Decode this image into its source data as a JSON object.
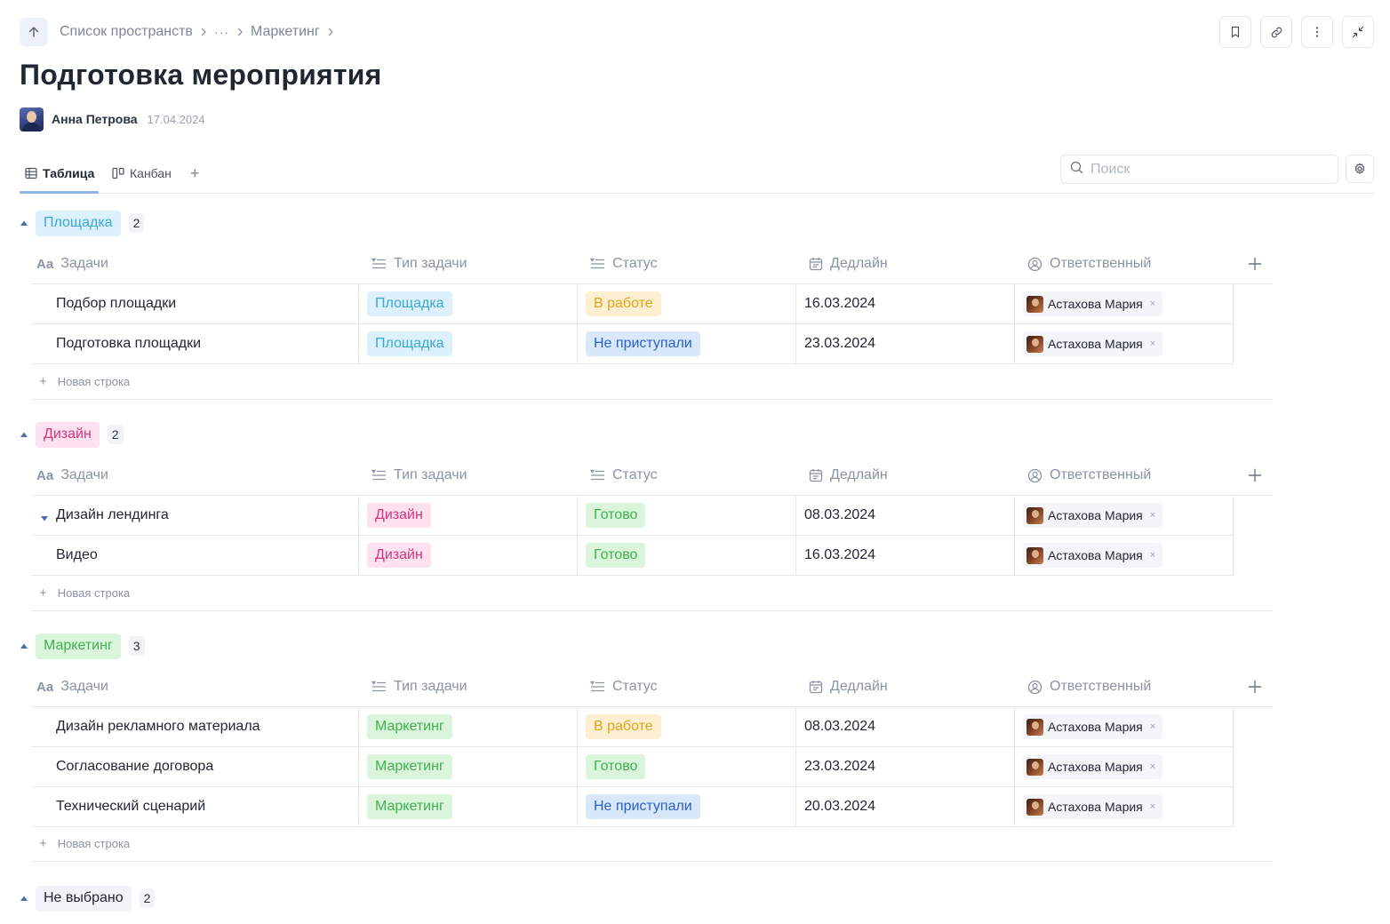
{
  "breadcrumb": {
    "items": [
      "Список пространств",
      "···",
      "Маркетинг"
    ]
  },
  "page_title": "Подготовка мероприятия",
  "author": {
    "name": "Анна Петрова",
    "date": "17.04.2024"
  },
  "views": {
    "table": "Таблица",
    "kanban": "Канбан",
    "add": "+"
  },
  "search": {
    "placeholder": "Поиск"
  },
  "columns": {
    "tasks": "Задачи",
    "type": "Тип задачи",
    "status": "Статус",
    "deadline": "Дедлайн",
    "assignee": "Ответственный"
  },
  "new_row_label": "Новая строка",
  "colors": {
    "venue_bg": "#dcf1fb",
    "venue_fg": "#3aa7d8",
    "design_bg": "#fde1ee",
    "design_fg": "#d6347e",
    "marketing_bg": "#daf5dc",
    "marketing_fg": "#3fb24e",
    "inprogress_bg": "#fdf0d2",
    "inprogress_fg": "#e3a21a",
    "done_bg": "#daf5dc",
    "done_fg": "#3fb24e",
    "notstarted_bg": "#d9e7fb",
    "notstarted_fg": "#2a61c4",
    "none_bg": "#f1f3f6",
    "none_fg": "#1f2533"
  },
  "groups": [
    {
      "name": "Площадка",
      "count": "2",
      "rows": [
        {
          "task": "Подбор площадки",
          "type": "Площадка",
          "status": "В работе",
          "deadline": "16.03.2024",
          "assignee": "Астахова Мария"
        },
        {
          "task": "Подготовка площадки",
          "type": "Площадка",
          "status": "Не приступали",
          "deadline": "23.03.2024",
          "assignee": "Астахова Мария"
        }
      ]
    },
    {
      "name": "Дизайн",
      "count": "2",
      "rows": [
        {
          "task": "Дизайн лендинга",
          "type": "Дизайн",
          "status": "Готово",
          "deadline": "08.03.2024",
          "assignee": "Астахова Мария"
        },
        {
          "task": "Видео",
          "type": "Дизайн",
          "status": "Готово",
          "deadline": "16.03.2024",
          "assignee": "Астахова Мария"
        }
      ]
    },
    {
      "name": "Маркетинг",
      "count": "3",
      "rows": [
        {
          "task": "Дизайн рекламного материала",
          "type": "Маркетинг",
          "status": "В работе",
          "deadline": "08.03.2024",
          "assignee": "Астахова Мария"
        },
        {
          "task": "Согласование договора",
          "type": "Маркетинг",
          "status": "Готово",
          "deadline": "23.03.2024",
          "assignee": "Астахова Мария"
        },
        {
          "task": "Технический сценарий",
          "type": "Маркетинг",
          "status": "Не приступали",
          "deadline": "20.03.2024",
          "assignee": "Астахова Мария"
        }
      ]
    },
    {
      "name": "Не выбрано",
      "count": "2",
      "rows": []
    }
  ]
}
